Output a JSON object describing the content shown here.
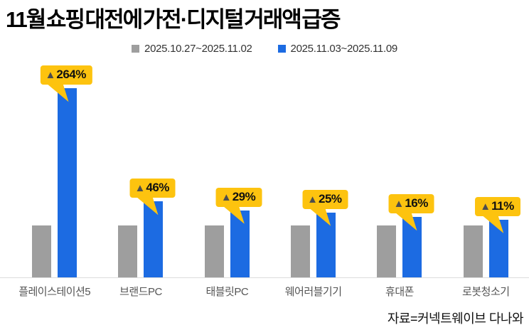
{
  "title": "11월 쇼핑 대전에 가전·디지털 거래액 급증",
  "legend": {
    "items": [
      {
        "label": "2025.10.27~2025.11.02",
        "color": "#9E9E9E"
      },
      {
        "label": "2025.11.03~2025.11.09",
        "color": "#1C6BE2"
      }
    ]
  },
  "source": "자료=커넥트웨이브 다나와",
  "colors": {
    "bar_prev": "#9E9E9E",
    "bar_curr": "#1C6BE2",
    "callout_bg": "#FDC30F",
    "callout_marker": "#4D4D4D",
    "callout_text": "#111111",
    "baseline": "#DDDDDD",
    "category_label": "#555555"
  },
  "chart_data": {
    "type": "bar",
    "title": "11월 쇼핑 대전에 가전·디지털 거래액 급증",
    "categories": [
      "플레이스테이션5",
      "브랜드PC",
      "태블릿PC",
      "웨어러블기기",
      "휴대폰",
      "로봇청소기"
    ],
    "series": [
      {
        "name": "2025.10.27~2025.11.02",
        "color": "#9E9E9E",
        "values": [
          100,
          100,
          100,
          100,
          100,
          100
        ]
      },
      {
        "name": "2025.11.03~2025.11.09",
        "color": "#1C6BE2",
        "values": [
          364,
          146,
          129,
          125,
          116,
          111
        ]
      }
    ],
    "value_scale": "indexed, week of 2025.10.27~11.02 = 100",
    "pct_increase": [
      264,
      46,
      29,
      25,
      16,
      11
    ],
    "annotations": [
      {
        "marker": "▲",
        "text": "264%"
      },
      {
        "marker": "▲",
        "text": "46%"
      },
      {
        "marker": "▲",
        "text": "29%"
      },
      {
        "marker": "▲",
        "text": "25%"
      },
      {
        "marker": "▲",
        "text": "16%"
      },
      {
        "marker": "▲",
        "text": "11%"
      }
    ],
    "legend_position": "top-center",
    "grid": false,
    "xlabel": "",
    "ylabel": "",
    "ylim": [
      0,
      380
    ]
  }
}
